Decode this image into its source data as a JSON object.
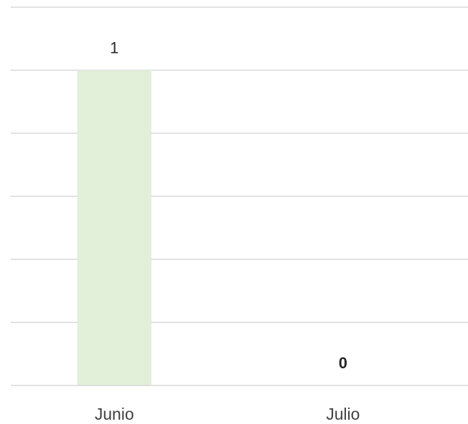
{
  "chart_data": {
    "type": "bar",
    "categories": [
      "Junio",
      "Julio"
    ],
    "values": [
      1,
      0
    ],
    "data_labels": [
      "1",
      "0"
    ],
    "title": "",
    "xlabel": "",
    "ylabel": "",
    "ylim": [
      0,
      1.2
    ],
    "gridlines": [
      0,
      0.2,
      0.4,
      0.6,
      0.8,
      1.0,
      1.2
    ],
    "grid": true,
    "legend": "none",
    "colors": {
      "bar": "#e2efd9",
      "grid": "#d9d9d9",
      "axis_text": "#404040",
      "data_label_text": "#262626"
    }
  }
}
